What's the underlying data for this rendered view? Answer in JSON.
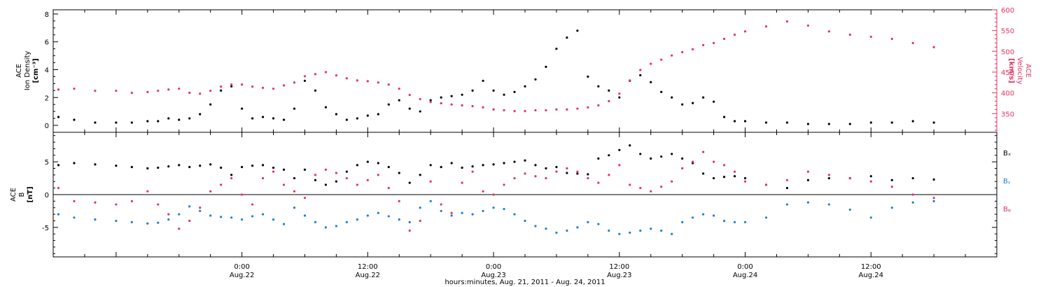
{
  "xaxis": {
    "title": "hours:minutes, Aug. 21, 2011 - Aug. 24, 2011",
    "range_hours": [
      -18,
      72
    ],
    "ticks": [
      {
        "h": 0,
        "time": "0:00",
        "date": "Aug.22"
      },
      {
        "h": 12,
        "time": "12:00",
        "date": "Aug.22"
      },
      {
        "h": 24,
        "time": "0:00",
        "date": "Aug.23"
      },
      {
        "h": 36,
        "time": "12:00",
        "date": "Aug.23"
      },
      {
        "h": 48,
        "time": "0:00",
        "date": "Aug.24"
      },
      {
        "h": 60,
        "time": "12:00",
        "date": "Aug.24"
      }
    ]
  },
  "colors": {
    "black": "#000000",
    "pink": "#e8305f",
    "blue": "#1a7fd6"
  },
  "chart_data": [
    {
      "type": "scatter",
      "panel": "top",
      "ylabel_left": [
        "ACE",
        "Ion Density",
        "[cm⁻³]"
      ],
      "ylabel_right": [
        "ACE",
        "Velocity",
        "[km/s]"
      ],
      "left_ylim": [
        -0.5,
        8.3
      ],
      "left_ticks": [
        0,
        2,
        4,
        6,
        8
      ],
      "right_ylim": [
        305,
        600
      ],
      "right_ticks": [
        350,
        400,
        450,
        500,
        550,
        600
      ],
      "series": [
        {
          "axis": "left",
          "color": "#000000",
          "x": [
            -17.5,
            -16,
            -14,
            -12,
            -10.5,
            -9,
            -8,
            -7,
            -6,
            -5,
            -4,
            -3,
            -2,
            -1,
            0,
            1,
            2,
            3,
            4,
            5,
            6,
            7,
            8,
            9,
            10,
            11,
            12,
            13,
            14,
            15,
            16,
            17,
            18,
            19,
            20,
            21,
            22,
            23,
            24,
            25,
            26,
            27,
            28,
            29,
            30,
            31,
            32,
            33,
            34,
            35,
            36,
            37,
            38,
            39,
            40,
            41,
            42,
            43,
            44,
            45,
            46,
            47,
            48,
            50,
            52,
            54,
            56,
            58,
            60,
            62,
            64,
            66
          ],
          "y": [
            0.6,
            0.4,
            0.2,
            0.2,
            0.2,
            0.3,
            0.3,
            0.5,
            0.4,
            0.5,
            0.8,
            1.5,
            2.5,
            2.8,
            1.2,
            0.5,
            0.6,
            0.5,
            0.4,
            1.2,
            3.2,
            2.5,
            1.3,
            0.8,
            0.4,
            0.5,
            0.7,
            0.8,
            1.5,
            1.8,
            1.2,
            1,
            1.8,
            2,
            2.1,
            2.2,
            2.5,
            3.2,
            2.5,
            2.2,
            2.4,
            2.8,
            3.3,
            4.2,
            5.5,
            6.3,
            6.8,
            3.5,
            2.8,
            2.5,
            2,
            3.2,
            3.6,
            3.1,
            2.4,
            2,
            1.5,
            1.6,
            2,
            1.7,
            0.6,
            0.3,
            0.3,
            0.2,
            0.2,
            0.1,
            0.1,
            0.1,
            0.2,
            0.2,
            0.3,
            0.2
          ]
        },
        {
          "axis": "right",
          "color": "#e8305f",
          "x": [
            -17.5,
            -16,
            -14,
            -12,
            -10.5,
            -9,
            -8,
            -7,
            -6,
            -5,
            -4,
            -3,
            -2,
            -1,
            0,
            1,
            2,
            3,
            4,
            5,
            6,
            7,
            8,
            9,
            10,
            11,
            12,
            13,
            14,
            15,
            16,
            17,
            18,
            19,
            20,
            21,
            22,
            23,
            24,
            25,
            26,
            27,
            28,
            29,
            30,
            31,
            32,
            33,
            34,
            35,
            36,
            37,
            38,
            39,
            40,
            41,
            42,
            43,
            44,
            45,
            46,
            47,
            48,
            50,
            52,
            54,
            56,
            58,
            60,
            62,
            64,
            66
          ],
          "y": [
            408,
            410,
            405,
            405,
            400,
            402,
            405,
            408,
            410,
            400,
            398,
            405,
            415,
            420,
            420,
            415,
            412,
            410,
            418,
            425,
            440,
            445,
            450,
            442,
            435,
            430,
            428,
            425,
            420,
            410,
            395,
            385,
            378,
            375,
            372,
            370,
            368,
            365,
            360,
            358,
            356,
            356,
            358,
            358,
            360,
            360,
            362,
            365,
            370,
            380,
            398,
            430,
            455,
            470,
            480,
            490,
            498,
            505,
            515,
            520,
            530,
            540,
            548,
            560,
            572,
            562,
            548,
            540,
            535,
            530,
            520,
            510
          ]
        }
      ]
    },
    {
      "type": "scatter",
      "panel": "bottom",
      "ylabel_left": [
        "ACE",
        "B",
        "[nT]"
      ],
      "ylim": [
        -9.5,
        9.5
      ],
      "ticks": [
        -5,
        0,
        5
      ],
      "legend": [
        "Bₓ",
        "Bᵧ",
        "Bᵩ"
      ],
      "series": [
        {
          "legend_index": 0,
          "color": "#000000",
          "x": [
            -17.5,
            -16,
            -14,
            -12,
            -10.5,
            -9,
            -8,
            -7,
            -6,
            -5,
            -4,
            -3,
            -2,
            -1,
            0,
            1,
            2,
            3,
            4,
            5,
            6,
            7,
            8,
            9,
            10,
            11,
            12,
            13,
            14,
            15,
            16,
            17,
            18,
            19,
            20,
            21,
            22,
            23,
            24,
            25,
            26,
            27,
            28,
            29,
            30,
            31,
            32,
            33,
            34,
            35,
            36,
            37,
            38,
            39,
            40,
            41,
            42,
            43,
            44,
            45,
            46,
            47,
            48,
            50,
            52,
            54,
            56,
            58,
            60,
            62,
            64,
            66
          ],
          "y": [
            4.5,
            4.8,
            4.6,
            4.4,
            4.2,
            4,
            4.1,
            4.3,
            4.5,
            4.2,
            4.4,
            4.6,
            4.1,
            3,
            4.2,
            4.4,
            4.5,
            4.1,
            3.8,
            2.5,
            3.8,
            2.2,
            1.5,
            2,
            3.5,
            4.5,
            5,
            4.8,
            4.2,
            3.3,
            1.8,
            3,
            4.5,
            4.2,
            4.8,
            4.1,
            4.3,
            4.5,
            4.6,
            4.8,
            5,
            5.2,
            4.5,
            4,
            4.2,
            3.3,
            3.2,
            3.1,
            5.5,
            6,
            6.8,
            7.5,
            6.2,
            5.5,
            5.8,
            6.2,
            5.5,
            4.8,
            3.2,
            2.5,
            2.7,
            2.8,
            2.5,
            1.5,
            1,
            2.2,
            2.5,
            2.5,
            2.8,
            2.2,
            2.5,
            2.3
          ]
        },
        {
          "legend_index": 1,
          "color": "#1a7fd6",
          "x": [
            -17.5,
            -16,
            -14,
            -12,
            -10.5,
            -9,
            -8,
            -7,
            -6,
            -5,
            -4,
            -3,
            -2,
            -1,
            0,
            1,
            2,
            3,
            4,
            5,
            6,
            7,
            8,
            9,
            10,
            11,
            12,
            13,
            14,
            15,
            16,
            17,
            18,
            19,
            20,
            21,
            22,
            23,
            24,
            25,
            26,
            27,
            28,
            29,
            30,
            31,
            32,
            33,
            34,
            35,
            36,
            37,
            38,
            39,
            40,
            41,
            42,
            43,
            44,
            45,
            46,
            47,
            48,
            50,
            52,
            54,
            56,
            58,
            60,
            62,
            64,
            66
          ],
          "y": [
            -3,
            -3.5,
            -3.8,
            -4,
            -4.2,
            -4.4,
            -4.3,
            -3.8,
            -3,
            -1.8,
            -2.5,
            -3.2,
            -3.4,
            -3.5,
            -3.8,
            -3.3,
            -3,
            -3.8,
            -4.5,
            -2,
            -3.2,
            -4.2,
            -5,
            -4.8,
            -4.2,
            -3.8,
            -3.2,
            -2.8,
            -3.3,
            -3.8,
            -4.2,
            -2,
            -1,
            -2.5,
            -3.2,
            -2.8,
            -3,
            -2.5,
            -2,
            -2.2,
            -3,
            -4,
            -4.8,
            -5.2,
            -5.8,
            -5.5,
            -5,
            -4.2,
            -4.5,
            -5.5,
            -6,
            -5.8,
            -5.5,
            -5.2,
            -5.5,
            -6,
            -4.2,
            -3.5,
            -3,
            -3.2,
            -4,
            -4.2,
            -4.2,
            -3.5,
            -1.5,
            -1.2,
            -1.5,
            -2.3,
            -3.5,
            -2,
            -1.2,
            -1
          ]
        },
        {
          "legend_index": 2,
          "color": "#e8305f",
          "x": [
            -17.5,
            -16,
            -14,
            -12,
            -10.5,
            -9,
            -8,
            -7,
            -6,
            -5,
            -4,
            -3,
            -2,
            -1,
            0,
            1,
            2,
            3,
            4,
            5,
            6,
            7,
            8,
            9,
            10,
            11,
            12,
            13,
            14,
            15,
            16,
            17,
            18,
            19,
            20,
            21,
            22,
            23,
            24,
            25,
            26,
            27,
            28,
            29,
            30,
            31,
            32,
            33,
            34,
            35,
            36,
            37,
            38,
            39,
            40,
            41,
            42,
            43,
            44,
            45,
            46,
            47,
            48,
            50,
            52,
            54,
            56,
            58,
            60,
            62,
            64,
            66
          ],
          "y": [
            1,
            -1,
            -1.2,
            -1.5,
            -1,
            0.5,
            -1.5,
            -3,
            -5.2,
            -4,
            -2,
            0.5,
            1.5,
            2.5,
            0,
            -1.5,
            2.5,
            3.5,
            1.5,
            0.5,
            -0.5,
            3,
            3.8,
            3.3,
            2.5,
            1.5,
            2.2,
            3,
            1,
            -1,
            -5.5,
            -4,
            2,
            -1.5,
            -2.8,
            1.8,
            3.5,
            0.5,
            0,
            1.5,
            2.5,
            3.2,
            2.8,
            2.5,
            3.5,
            4,
            3.5,
            2.5,
            1.8,
            3,
            4.5,
            1.5,
            1,
            0.5,
            1.2,
            2,
            4,
            5,
            6.5,
            5,
            4.5,
            3.5,
            2,
            1.5,
            2.2,
            3.5,
            3,
            2.5,
            2,
            1.2,
            0,
            -0.5
          ]
        }
      ]
    }
  ]
}
